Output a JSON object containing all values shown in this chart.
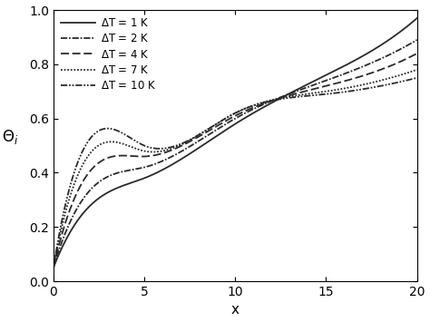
{
  "title": "",
  "xlabel": "x",
  "ylabel": "$\\Theta_i$",
  "xlim": [
    0,
    20
  ],
  "ylim": [
    0.0,
    1.0
  ],
  "xticks": [
    0,
    5,
    10,
    15,
    20
  ],
  "yticks": [
    0.0,
    0.2,
    0.4,
    0.6,
    0.8,
    1.0
  ],
  "legend_entries": [
    {
      "label": "$\\Delta$T = 1 K"
    },
    {
      "label": "$\\Delta$T = 2 K"
    },
    {
      "label": "$\\Delta$T = 4 K"
    },
    {
      "label": "$\\Delta$T = 7 K"
    },
    {
      "label": "$\\Delta$T = 10 K"
    }
  ],
  "background_color": "#ffffff",
  "curves": [
    {
      "label": "$\\Delta$T = 1 K",
      "linestyle": "solid",
      "y0": 0.05,
      "y_at_1": 0.19,
      "y_at_5": 0.38,
      "y_at_10": 0.58,
      "y_at_15": 0.76,
      "y_at_18": 0.87,
      "y_end": 0.97
    },
    {
      "label": "$\\Delta$T = 2 K",
      "linestyle": "dashdot2",
      "y0": 0.05,
      "y_at_1": 0.23,
      "y_at_5": 0.42,
      "y_at_10": 0.6,
      "y_at_15": 0.74,
      "y_at_18": 0.82,
      "y_end": 0.89
    },
    {
      "label": "$\\Delta$T = 4 K",
      "linestyle": "dashed",
      "y0": 0.05,
      "y_at_1": 0.28,
      "y_at_5": 0.46,
      "y_at_10": 0.61,
      "y_at_15": 0.72,
      "y_at_18": 0.78,
      "y_end": 0.84
    },
    {
      "label": "$\\Delta$T = 7 K",
      "linestyle": "dotted",
      "y0": 0.05,
      "y_at_1": 0.33,
      "y_at_5": 0.48,
      "y_at_10": 0.62,
      "y_at_15": 0.7,
      "y_at_18": 0.74,
      "y_end": 0.78
    },
    {
      "label": "$\\Delta$T = 10 K",
      "linestyle": "dashdotdot",
      "y0": 0.05,
      "y_at_1": 0.37,
      "y_at_5": 0.5,
      "y_at_10": 0.62,
      "y_at_15": 0.69,
      "y_at_18": 0.72,
      "y_end": 0.75
    }
  ],
  "linewidth": 1.3,
  "color": "#2a2a2a"
}
